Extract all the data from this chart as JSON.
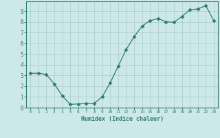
{
  "x": [
    0,
    1,
    2,
    3,
    4,
    5,
    6,
    7,
    8,
    9,
    10,
    11,
    12,
    13,
    14,
    15,
    16,
    17,
    18,
    19,
    20,
    21,
    22,
    23
  ],
  "y": [
    3.2,
    3.2,
    3.1,
    2.2,
    1.1,
    0.3,
    0.35,
    0.4,
    0.4,
    1.0,
    2.3,
    3.85,
    5.4,
    6.6,
    7.6,
    8.1,
    8.3,
    8.0,
    7.95,
    8.5,
    9.1,
    9.2,
    9.5,
    8.1
  ],
  "xlim": [
    -0.5,
    23.5
  ],
  "ylim": [
    0,
    9.9
  ],
  "xlabel": "Humidex (Indice chaleur)",
  "xticks": [
    0,
    1,
    2,
    3,
    4,
    5,
    6,
    7,
    8,
    9,
    10,
    11,
    12,
    13,
    14,
    15,
    16,
    17,
    18,
    19,
    20,
    21,
    22,
    23
  ],
  "yticks": [
    0,
    1,
    2,
    3,
    4,
    5,
    6,
    7,
    8,
    9
  ],
  "line_color": "#2d7d6e",
  "marker_color": "#2d7d6e",
  "bg_color": "#cde8e8",
  "grid_color": "#b0cfcf",
  "axes_color": "#2d7d6e"
}
